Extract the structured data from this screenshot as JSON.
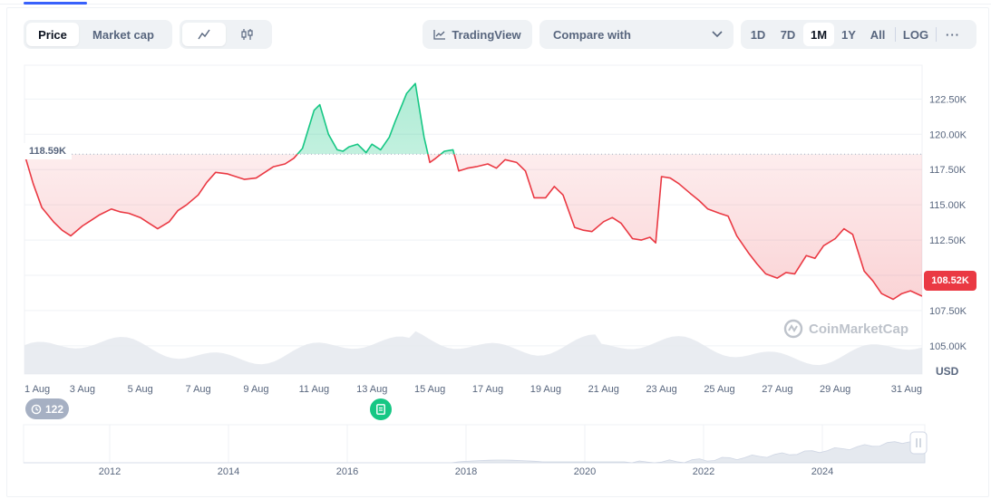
{
  "tabs": {
    "price": "Price",
    "market_cap": "Market cap"
  },
  "chart_style": {
    "line_icon": "line-chart-icon",
    "candle_icon": "candlestick-icon"
  },
  "tradingview": {
    "label": "TradingView",
    "icon": "tradingview-chart-icon"
  },
  "compare": {
    "label": "Compare with",
    "icon": "chevron-down-icon"
  },
  "ranges": [
    "1D",
    "7D",
    "1M",
    "1Y",
    "All",
    "LOG"
  ],
  "active_range": "1M",
  "more_icon": "more-horizontal-icon",
  "reference_label": "118.59K",
  "current_label": "108.52K",
  "currency": "USD",
  "events_count": "122",
  "watermark": "CoinMarketCap",
  "colors": {
    "up": "#16c784",
    "down": "#ea3943",
    "accent": "#3861fb"
  },
  "chart_data": {
    "type": "line",
    "title": "",
    "xlabel": "",
    "ylabel": "",
    "currency": "USD",
    "ylim": [
      103000,
      124900
    ],
    "y_ticks": [
      105000,
      107500,
      110000,
      112500,
      115000,
      117500,
      120000,
      122500
    ],
    "y_tick_labels": [
      "105.00K",
      "107.50K",
      "110.00K",
      "112.50K",
      "115.00K",
      "117.50K",
      "120.00K",
      "122.50K"
    ],
    "x_tick_labels": [
      "1 Aug",
      "3 Aug",
      "5 Aug",
      "7 Aug",
      "9 Aug",
      "11 Aug",
      "13 Aug",
      "15 Aug",
      "17 Aug",
      "19 Aug",
      "21 Aug",
      "23 Aug",
      "25 Aug",
      "27 Aug",
      "29 Aug",
      "31 Aug"
    ],
    "x_range_days": [
      1,
      32
    ],
    "reference_price": 118590,
    "current_price": 108520,
    "series": [
      {
        "name": "",
        "x": [
          1,
          1.3,
          1.6,
          2.0,
          2.3,
          2.6,
          3.0,
          3.3,
          3.6,
          4.0,
          4.3,
          4.6,
          5.0,
          5.3,
          5.6,
          6.0,
          6.3,
          6.6,
          7.0,
          7.3,
          7.6,
          8.0,
          8.3,
          8.6,
          9.0,
          9.3,
          9.6,
          10.0,
          10.3,
          10.6,
          11.0,
          11.2,
          11.5,
          11.8,
          12.0,
          12.2,
          12.5,
          12.8,
          13.0,
          13.3,
          13.6,
          13.8,
          14.0,
          14.2,
          14.5,
          14.8,
          15.0,
          15.2,
          15.5,
          15.8,
          16.0,
          16.3,
          16.6,
          17.0,
          17.3,
          17.6,
          18.0,
          18.3,
          18.6,
          19.0,
          19.3,
          19.6,
          20.0,
          20.3,
          20.6,
          21.0,
          21.3,
          21.6,
          22.0,
          22.3,
          22.6,
          22.8,
          23.0,
          23.3,
          23.6,
          24.0,
          24.3,
          24.6,
          25.0,
          25.3,
          25.6,
          26.0,
          26.3,
          26.6,
          27.0,
          27.3,
          27.6,
          28.0,
          28.3,
          28.6,
          29.0,
          29.3,
          29.6,
          30.0,
          30.3,
          30.6,
          31.0,
          31.3,
          31.6,
          32.0
        ],
        "y": [
          118590,
          116500,
          114800,
          113800,
          113200,
          112800,
          113500,
          113900,
          114300,
          114700,
          114500,
          114400,
          114100,
          113700,
          113300,
          113800,
          114600,
          115000,
          115700,
          116600,
          117300,
          117200,
          117000,
          116800,
          116900,
          117300,
          117700,
          117900,
          118300,
          119000,
          121700,
          122100,
          120000,
          118900,
          118800,
          119100,
          119300,
          118700,
          119300,
          118900,
          119800,
          120900,
          121900,
          122900,
          123600,
          119800,
          118000,
          118300,
          118800,
          118900,
          117400,
          117600,
          117700,
          117900,
          117600,
          118200,
          118000,
          117400,
          115500,
          115500,
          116300,
          115700,
          113400,
          113200,
          113100,
          113800,
          114100,
          113700,
          112600,
          112500,
          112700,
          112300,
          117000,
          116900,
          116500,
          115800,
          115300,
          114700,
          114400,
          114200,
          112800,
          111600,
          110800,
          110100,
          109800,
          110200,
          110100,
          111400,
          111200,
          112100,
          112600,
          113300,
          112900,
          110300,
          109600,
          108700,
          108300,
          108700,
          108900,
          108520
        ]
      }
    ]
  },
  "overview": {
    "x_tick_labels": [
      "2012",
      "2014",
      "2016",
      "2018",
      "2020",
      "2022",
      "2024"
    ]
  }
}
